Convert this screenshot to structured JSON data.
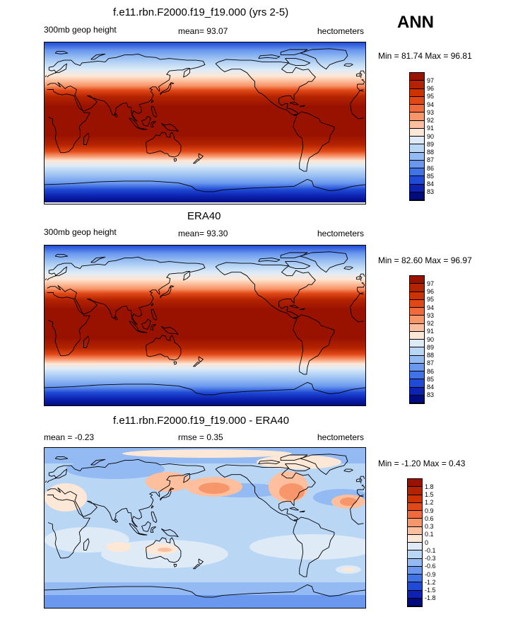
{
  "season": "ANN",
  "coast_color": "#000000",
  "panels": [
    {
      "title": "f.e11.rbn.F2000.f19_f19.000 (yrs 2-5)",
      "left": "300mb geop height",
      "center": "mean=  93.07",
      "right": "hectometers",
      "minmax": "Min =  81.74 Max =  96.81",
      "type": "abs",
      "colorbar": {
        "labels": [
          "97",
          "96",
          "95",
          "94",
          "93",
          "92",
          "91",
          "90",
          "89",
          "88",
          "87",
          "86",
          "85",
          "84",
          "83"
        ],
        "colors": [
          "#991200",
          "#b32300",
          "#cc3300",
          "#e14817",
          "#f06a3d",
          "#f7966b",
          "#fdbf9d",
          "#fde7d6",
          "#deebf7",
          "#bad6f5",
          "#93baf2",
          "#6a98ee",
          "#3f73e6",
          "#1f4bd6",
          "#0d22b0",
          "#000b80"
        ]
      }
    },
    {
      "title": "ERA40",
      "left": "300mb geop height",
      "center": "mean=  93.30",
      "right": "hectometers",
      "minmax": "Min =  82.60 Max =  96.97",
      "type": "abs",
      "colorbar": {
        "labels": [
          "97",
          "96",
          "95",
          "94",
          "93",
          "92",
          "91",
          "90",
          "89",
          "88",
          "87",
          "86",
          "85",
          "84",
          "83"
        ],
        "colors": [
          "#991200",
          "#b32300",
          "#cc3300",
          "#e14817",
          "#f06a3d",
          "#f7966b",
          "#fdbf9d",
          "#fde7d6",
          "#deebf7",
          "#bad6f5",
          "#93baf2",
          "#6a98ee",
          "#3f73e6",
          "#1f4bd6",
          "#0d22b0",
          "#000b80"
        ]
      }
    },
    {
      "title": "f.e11.rbn.F2000.f19_f19.000 - ERA40",
      "left": "mean =  -0.23",
      "center": "rmse =   0.35",
      "right": "hectometers",
      "minmax": "Min =  -1.20 Max =   0.43",
      "type": "diff",
      "colorbar": {
        "labels": [
          "1.8",
          "1.5",
          "1.2",
          "0.9",
          "0.6",
          "0.3",
          "0.1",
          "0",
          "-0.1",
          "-0.3",
          "-0.6",
          "-0.9",
          "-1.2",
          "-1.5",
          "-1.8"
        ],
        "colors": [
          "#991200",
          "#b32300",
          "#cc3300",
          "#e14817",
          "#f06a3d",
          "#f7966b",
          "#fdbf9d",
          "#fde7d6",
          "#deebf7",
          "#bad6f5",
          "#93baf2",
          "#6a98ee",
          "#3f73e6",
          "#1f4bd6",
          "#0d22b0",
          "#000b80"
        ]
      }
    }
  ]
}
